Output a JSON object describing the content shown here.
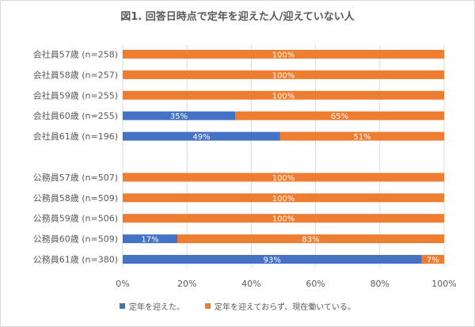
{
  "chart_data": {
    "type": "bar",
    "orientation": "horizontal",
    "stacked": true,
    "title": "図1. 回答日時点で定年を迎えた人/迎えていない人",
    "categories": [
      "会社員57歳 (n=258)",
      "会社員58歳 (n=257)",
      "会社員59歳 (n=255)",
      "会社員60歳 (n=255)",
      "会社員61歳 (n=196)",
      "",
      "公務員57歳 (n=507)",
      "公務員58歳 (n=509)",
      "公務員59歳 (n=506)",
      "公務員60歳 (n=509)",
      "公務員61歳 (n=380)"
    ],
    "series": [
      {
        "name": "定年を迎えた。",
        "color": "#4472c4",
        "values": [
          0,
          0,
          0,
          35,
          49,
          null,
          0,
          0,
          0,
          17,
          93
        ],
        "labels": [
          "",
          "",
          "",
          "35%",
          "49%",
          "",
          "",
          "",
          "",
          "17%",
          "93%"
        ]
      },
      {
        "name": "定年を迎えておらず、現在働いている。",
        "color": "#ed7d31",
        "values": [
          100,
          100,
          100,
          65,
          51,
          null,
          100,
          100,
          100,
          83,
          7
        ],
        "labels": [
          "100%",
          "100%",
          "100%",
          "65%",
          "51%",
          "",
          "100%",
          "100%",
          "100%",
          "83%",
          "7%"
        ]
      }
    ],
    "xlim": [
      0,
      100
    ],
    "xticks": [
      "0%",
      "20%",
      "40%",
      "60%",
      "80%",
      "100%"
    ],
    "legend_position": "bottom"
  }
}
